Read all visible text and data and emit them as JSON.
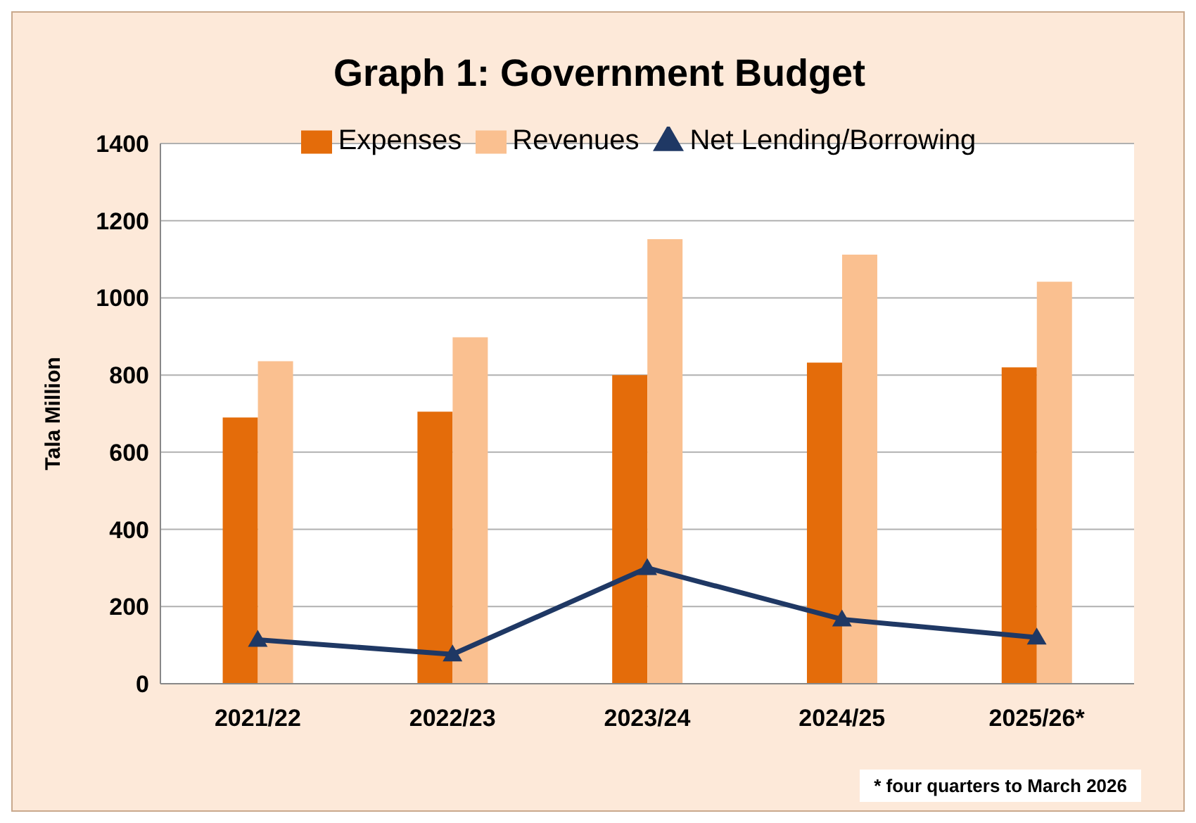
{
  "chart_data": {
    "type": "bar",
    "title": "Graph 1: Government Budget",
    "ylabel": "Tala Million",
    "categories": [
      "2021/22",
      "2022/23",
      "2023/24",
      "2024/25",
      "2025/26*"
    ],
    "series": [
      {
        "name": "Expenses",
        "color": "#e46c0a",
        "values": [
          690,
          705,
          800,
          832,
          820
        ]
      },
      {
        "name": "Revenues",
        "color": "#fac090",
        "values": [
          836,
          898,
          1152,
          1112,
          1042
        ]
      },
      {
        "name": "Net Lending/Borrowing",
        "type": "line",
        "color": "#1f3864",
        "values": [
          114,
          76,
          300,
          167,
          120
        ],
        "marker": "triangle"
      }
    ],
    "ylim": [
      0,
      1400
    ],
    "yticks": [
      0,
      200,
      400,
      600,
      800,
      1000,
      1200,
      1400
    ],
    "grid": "y",
    "legend": "top",
    "annotations": [
      "* four quarters to March 2026"
    ]
  }
}
